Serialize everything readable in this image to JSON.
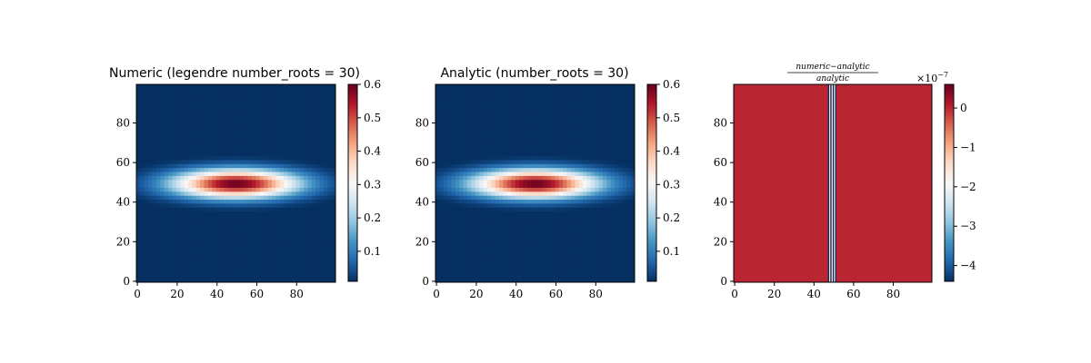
{
  "chart_data": [
    {
      "type": "heatmap",
      "title": "Numeric (legendre number_roots = 30)",
      "xticks": [
        "0",
        "20",
        "40",
        "60",
        "80"
      ],
      "yticks": [
        "0",
        "20",
        "40",
        "60",
        "80"
      ],
      "xlim": [
        0,
        99
      ],
      "ylim": [
        0,
        99
      ],
      "colormap": "RdBu_r",
      "field": {
        "center_x": 50,
        "center_y": 50,
        "peak": 0.6,
        "sigma_x": 22,
        "sigma_y": 5
      },
      "colorbar": {
        "min": 0.01,
        "max": 0.6,
        "ticks": [
          "0.1",
          "0.2",
          "0.3",
          "0.4",
          "0.5",
          "0.6"
        ],
        "tick_values": [
          0.1,
          0.2,
          0.3,
          0.4,
          0.5,
          0.6
        ]
      }
    },
    {
      "type": "heatmap",
      "title": "Analytic (number_roots = 30)",
      "xticks": [
        "0",
        "20",
        "40",
        "60",
        "80"
      ],
      "yticks": [
        "0",
        "20",
        "40",
        "60",
        "80"
      ],
      "xlim": [
        0,
        99
      ],
      "ylim": [
        0,
        99
      ],
      "colormap": "RdBu_r",
      "field": {
        "center_x": 50,
        "center_y": 50,
        "peak": 0.6,
        "sigma_x": 22,
        "sigma_y": 5
      },
      "colorbar": {
        "min": 0.01,
        "max": 0.6,
        "ticks": [
          "0.1",
          "0.2",
          "0.3",
          "0.4",
          "0.5",
          "0.6"
        ],
        "tick_values": [
          0.1,
          0.2,
          0.3,
          0.4,
          0.5,
          0.6
        ]
      }
    },
    {
      "type": "heatmap",
      "title_numerator": "numeric−analytic",
      "title_denominator": "analytic",
      "xticks": [
        "0",
        "20",
        "40",
        "60",
        "80"
      ],
      "yticks": [
        "0",
        "20",
        "40",
        "60",
        "80"
      ],
      "xlim": [
        0,
        99
      ],
      "ylim": [
        0,
        99
      ],
      "colormap": "RdBu_r",
      "background_value": 0.0,
      "stripes": [
        {
          "x": 47.6,
          "value": -4.4
        },
        {
          "x": 48.2,
          "value": -2.0
        },
        {
          "x": 48.8,
          "value": -4.4
        },
        {
          "x": 49.4,
          "value": -2.0
        },
        {
          "x": 50.0,
          "value": -4.4
        },
        {
          "x": 50.6,
          "value": -2.0
        },
        {
          "x": 51.2,
          "value": -4.4
        }
      ],
      "colorbar": {
        "min": -4.4,
        "max": 0.6,
        "ticks": [
          "0",
          "−1",
          "−2",
          "−3",
          "−4"
        ],
        "tick_values": [
          0,
          -1,
          -2,
          -3,
          -4
        ],
        "exponent_base": "×10",
        "exponent_power": "−7"
      }
    }
  ]
}
